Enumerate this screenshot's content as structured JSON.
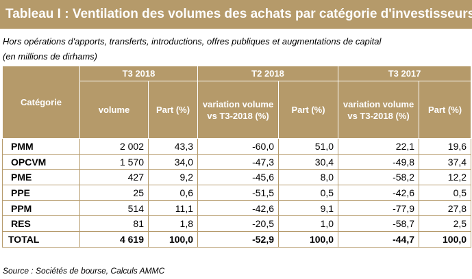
{
  "title": "Tableau  I : Ventilation des volumes des achats par catégorie d'investisseurs",
  "subtitle_1": "Hors opérations d'apports, transferts, introductions, offres publiques et augmentations de capital",
  "subtitle_2": "(en millions de dirhams)",
  "table": {
    "category_header": "Catégorie",
    "groups": [
      "T3 2018",
      "T2 2018",
      "T3 2017"
    ],
    "columns": [
      "volume",
      "Part (%)",
      "variation volume vs T3-2018  (%)",
      "Part (%)",
      "variation volume vs T3-2018  (%)",
      "Part (%)"
    ],
    "rows": [
      {
        "category": "PMM",
        "values": [
          "2 002",
          "43,3",
          "-60,0",
          "51,0",
          "22,1",
          "19,6"
        ]
      },
      {
        "category": "OPCVM",
        "values": [
          "1 570",
          "34,0",
          "-47,3",
          "30,4",
          "-49,8",
          "37,4"
        ]
      },
      {
        "category": "PME",
        "values": [
          "427",
          "9,2",
          "-45,6",
          "8,0",
          "-58,2",
          "12,2"
        ]
      },
      {
        "category": "PPE",
        "values": [
          "25",
          "0,6",
          "-51,5",
          "0,5",
          "-42,6",
          "0,5"
        ]
      },
      {
        "category": "PPM",
        "values": [
          "514",
          "11,1",
          "-42,6",
          "9,1",
          "-77,9",
          "27,8"
        ]
      },
      {
        "category": "RES",
        "values": [
          "81",
          "1,8",
          "-20,5",
          "1,0",
          "-58,7",
          "2,5"
        ]
      }
    ],
    "total": {
      "category": "TOTAL",
      "values": [
        "4 619",
        "100,0",
        "-52,9",
        "100,0",
        "-44,7",
        "100,0"
      ]
    }
  },
  "source": "Source : Sociétés de bourse, Calculs AMMC",
  "colors": {
    "header_bg": "#b59a6a",
    "header_text": "#ffffff",
    "border": "#b59a6a"
  }
}
